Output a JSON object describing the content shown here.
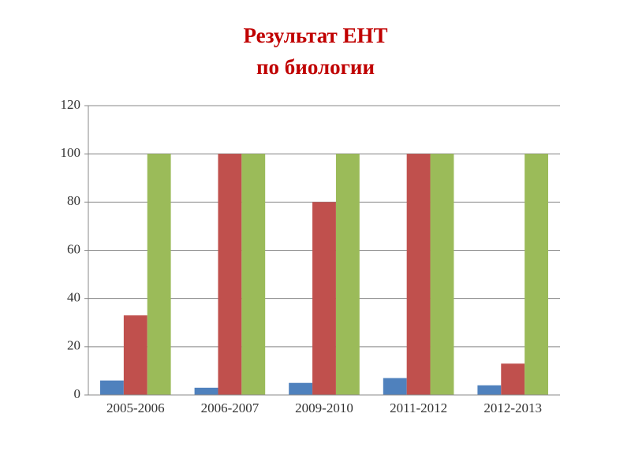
{
  "chart_data": {
    "type": "bar",
    "title": [
      "Результат ЕНТ",
      "по биологии"
    ],
    "categories": [
      "2005-2006",
      "2006-2007",
      "2009-2010",
      "2011-2012",
      "2012-2013"
    ],
    "series": [
      {
        "color": "#4f81bd",
        "values": [
          6,
          3,
          5,
          7,
          4
        ]
      },
      {
        "color": "#c0504d",
        "values": [
          33,
          100,
          80,
          100,
          13
        ]
      },
      {
        "color": "#9bbb59",
        "values": [
          100,
          100,
          100,
          100,
          100
        ]
      }
    ],
    "ylim": [
      0,
      120
    ],
    "yticks": [
      0,
      20,
      40,
      60,
      80,
      100,
      120
    ],
    "grid": true
  }
}
